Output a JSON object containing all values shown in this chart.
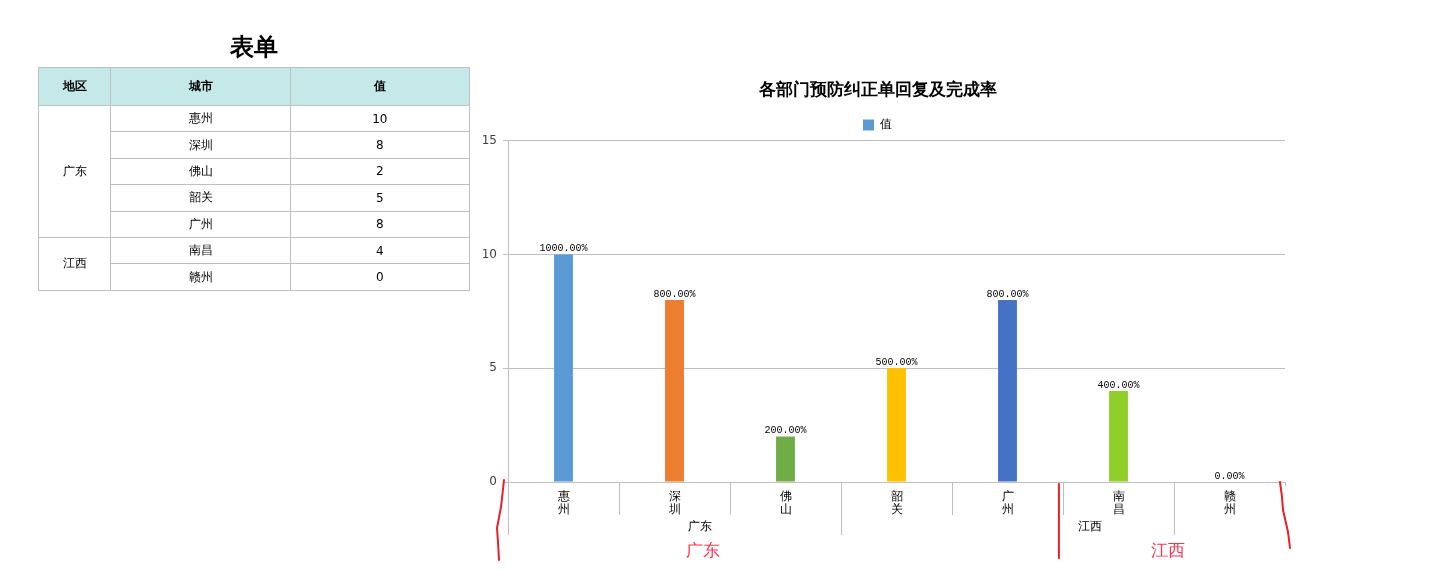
{
  "chart_data": [
    {
      "type": "other",
      "title": "表单",
      "legend_title": "地区",
      "xlabel": "城市",
      "ylabel": "值",
      "categories": [
        "惠州",
        "深圳",
        "佛山",
        "韶关",
        "广州",
        "南昌",
        "赣州"
      ],
      "data_labels": true,
      "series": [
        {
          "name": "广东",
          "values": [
            10,
            8,
            2,
            5,
            8,
            null,
            null
          ]
        },
        {
          "name": "江西",
          "values": [
            null,
            null,
            null,
            null,
            null,
            4,
            0
          ]
        }
      ]
    },
    {
      "type": "bar",
      "title": "各部门预防纠正单回复及完成率",
      "categories": [
        "惠州",
        "深圳",
        "佛山",
        "韶关",
        "广州",
        "南昌",
        "赣州"
      ],
      "series": [
        {
          "name": "值",
          "color": "#5b9bd5",
          "colors": [
            "#5b9bd5",
            "#ed7d31",
            "#70ad47",
            "#ffc000",
            "#4472c4",
            "#90cf2a",
            "#9e5ecf"
          ],
          "values": [
            10,
            8,
            2,
            5,
            8,
            4,
            0
          ],
          "value_labels": [
            "1000.00%",
            "800.00%",
            "200.00%",
            "500.00%",
            "800.00%",
            "400.00%",
            "0.00%"
          ]
        }
      ],
      "ylim": [
        0,
        15
      ],
      "yticks": [
        0,
        5,
        10,
        15
      ],
      "grid": "y",
      "legend": "top",
      "annotations": [
        "广东",
        "江西",
        "广东",
        "江西"
      ]
    }
  ]
}
